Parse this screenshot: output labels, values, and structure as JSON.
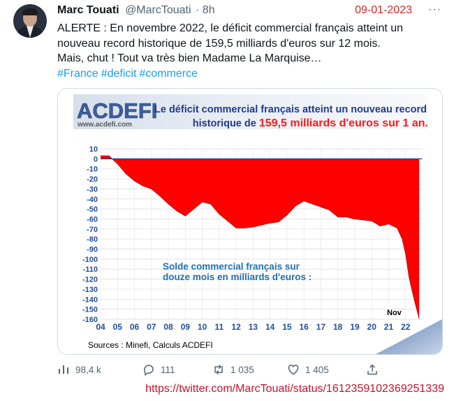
{
  "tweet": {
    "author_name": "Marc Touati",
    "handle": "@MarcTouati",
    "time": "· 8h",
    "date_annotation": "09-01-2023",
    "more_label": "···",
    "text_lines": [
      "ALERTE : En novembre 2022, le déficit commercial français atteint un",
      "nouveau record historique de 159,5 milliards d'euros sur 12 mois.",
      "Mais, chut ! Tout va très bien Madame La Marquise…"
    ],
    "hashtags": [
      "#France",
      "#deficit",
      "#commerce"
    ]
  },
  "chart_card": {
    "logo": "ACDEFI",
    "logo_url": "www.acdefi.com",
    "headline_line1": "Le déficit commercial français atteint un nouveau record",
    "headline_line2_prefix": "historique de ",
    "headline_line2_highlight": "159,5 milliards d'euros sur 1 an.",
    "overlay_line1": "Solde commercial français sur",
    "overlay_line2": "douze mois en milliards d'euros :",
    "nov_label": "Nov",
    "sources": "Sources : Minefi, Calculs ACDEFI",
    "colors": {
      "fill": "#ff0000",
      "headline_blue": "#1f3a93",
      "highlight": "#ff1a1a",
      "overlay_blue": "#1f6fb5"
    }
  },
  "chart_data": {
    "type": "area",
    "x": [
      2004.0,
      2004.5,
      2005.0,
      2005.5,
      2006.0,
      2006.5,
      2007.0,
      2007.5,
      2008.0,
      2008.5,
      2009.0,
      2009.5,
      2010.0,
      2010.5,
      2011.0,
      2011.5,
      2012.0,
      2012.5,
      2013.0,
      2013.5,
      2014.0,
      2014.5,
      2015.0,
      2015.5,
      2016.0,
      2016.5,
      2017.0,
      2017.5,
      2018.0,
      2018.5,
      2019.0,
      2019.5,
      2020.0,
      2020.5,
      2021.0,
      2021.5,
      2021.8,
      2022.0,
      2022.2,
      2022.5,
      2022.8
    ],
    "values": [
      3,
      3,
      -5,
      -15,
      -22,
      -27,
      -30,
      -37,
      -45,
      -52,
      -57,
      -50,
      -43,
      -45,
      -55,
      -62,
      -69,
      -69,
      -68,
      -66,
      -64,
      -63,
      -56,
      -47,
      -42,
      -45,
      -48,
      -51,
      -58,
      -58,
      -60,
      -61,
      -62,
      -67,
      -65,
      -69,
      -80,
      -95,
      -118,
      -140,
      -159.5
    ],
    "x_tick_labels": [
      "04",
      "05",
      "06",
      "07",
      "08",
      "09",
      "10",
      "11",
      "12",
      "13",
      "14",
      "15",
      "16",
      "17",
      "18",
      "19",
      "20",
      "21",
      "22"
    ],
    "y_tick_labels": [
      "10",
      "0",
      "-10",
      "-20",
      "-30",
      "-40",
      "-50",
      "-60",
      "-70",
      "-80",
      "-90",
      "-100",
      "-110",
      "-120",
      "-130",
      "-140",
      "-150",
      "-160"
    ],
    "ylim": [
      -160,
      10
    ],
    "xlim": [
      2004,
      2023
    ],
    "grid": true
  },
  "stats": {
    "views": "98,4 k",
    "replies": "111",
    "retweets": "1 035",
    "likes": "1 405"
  },
  "source_url": "https://twitter.com/MarcTouati/status/1612359102369251339"
}
